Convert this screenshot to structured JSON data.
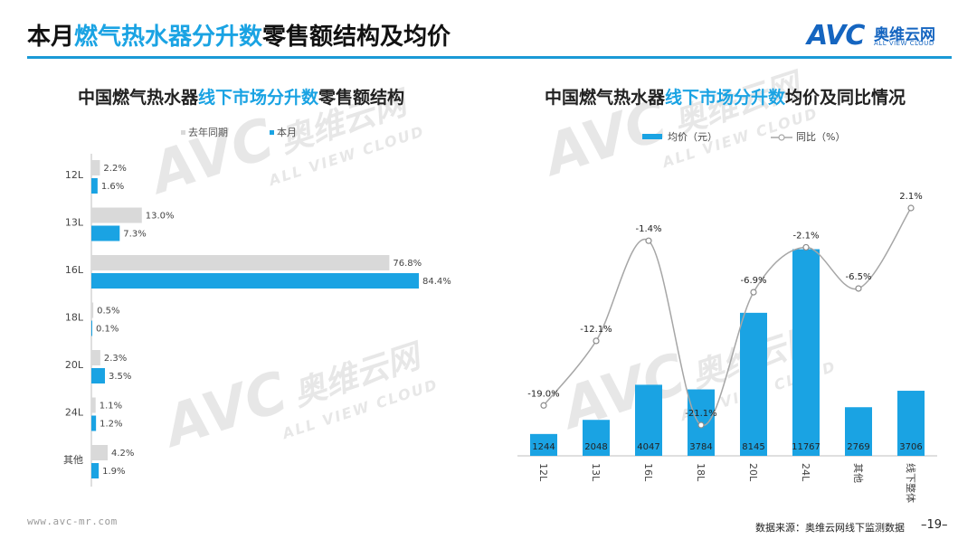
{
  "header": {
    "title_part1": "本月",
    "title_highlight": "燃气热水器分升数",
    "title_part2": "零售额结构及均价"
  },
  "logo": {
    "mark": "AVC",
    "cn": "奥维云网",
    "en": "ALL VIEW CLOUD"
  },
  "watermark": {
    "mark": "AVC",
    "cn": "奥维云网",
    "en": "ALL VIEW CLOUD"
  },
  "left_chart_title": {
    "part1": "中国燃气热水器",
    "highlight": "线下市场分升数",
    "part2": "零售额结构"
  },
  "right_chart_title": {
    "part1": "中国燃气热水器",
    "highlight": "线下市场分升数",
    "part2": "均价及同比情况"
  },
  "footer": {
    "url": "www.avc-mr.com",
    "source": "数据来源：奥维云网线下监测数据",
    "page": "–19–"
  },
  "colors": {
    "accent": "#1aa3e3",
    "gray_bar": "#d9d9d9",
    "line": "#a6a6a6"
  },
  "chart_data": [
    {
      "type": "bar",
      "orientation": "horizontal",
      "categories": [
        "12L",
        "13L",
        "16L",
        "18L",
        "20L",
        "24L",
        "其他"
      ],
      "series": [
        {
          "name": "去年同期",
          "color": "#d9d9d9",
          "values": [
            2.2,
            13.0,
            76.8,
            0.5,
            2.3,
            1.1,
            4.2
          ],
          "labels": [
            "2.2%",
            "13.0%",
            "76.8%",
            "0.5%",
            "2.3%",
            "1.1%",
            "4.2%"
          ]
        },
        {
          "name": "本月",
          "color": "#1aa3e3",
          "values": [
            1.6,
            7.3,
            84.4,
            0.1,
            3.5,
            1.2,
            1.9
          ],
          "labels": [
            "1.6%",
            "7.3%",
            "84.4%",
            "0.1%",
            "3.5%",
            "1.2%",
            "1.9%"
          ]
        }
      ],
      "legend": "top",
      "grid": false
    },
    {
      "type": "bar+line",
      "categories": [
        "12L",
        "13L",
        "16L",
        "18L",
        "20L",
        "24L",
        "其他",
        "线下整体"
      ],
      "bar_series": {
        "name": "均价（元）",
        "color": "#1aa3e3",
        "values": [
          1244,
          2048,
          4047,
          3784,
          8145,
          11767,
          2769,
          3706
        ]
      },
      "line_series": {
        "name": "同比（%）",
        "color": "#a6a6a6",
        "values": [
          -19.0,
          -12.1,
          -1.4,
          -21.1,
          -6.9,
          -2.1,
          -6.5,
          2.1
        ],
        "labels": [
          "-19.0%",
          "-12.1%",
          "-1.4%",
          "-21.1%",
          "-6.9%",
          "-2.1%",
          "-6.5%",
          "2.1%"
        ]
      },
      "bar_range": [
        0,
        12000
      ],
      "line_range": [
        -25,
        8
      ],
      "legend": "top",
      "grid": false
    }
  ]
}
